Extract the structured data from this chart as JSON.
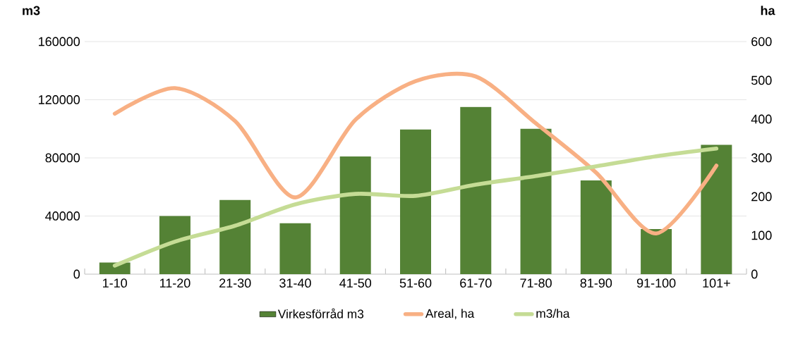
{
  "chart_data": {
    "type": "bar",
    "categories": [
      "1-10",
      "11-20",
      "21-30",
      "31-40",
      "41-50",
      "51-60",
      "61-70",
      "71-80",
      "81-90",
      "91-100",
      "101+"
    ],
    "ylabel": "m3",
    "y2label": "ha",
    "ylim": [
      0,
      160000
    ],
    "yticks": [
      0,
      40000,
      80000,
      120000,
      160000
    ],
    "y2lim": [
      0,
      600
    ],
    "y2ticks": [
      0,
      100,
      200,
      300,
      400,
      500,
      600
    ],
    "grid": "y",
    "legend": "bottom",
    "series": [
      {
        "name": "Virkesförråd m3",
        "color": "#548235",
        "values": [
          8000,
          40000,
          51000,
          35000,
          81000,
          99500,
          115000,
          100000,
          64500,
          31000,
          89000
        ]
      },
      {
        "name": "Areal, ha",
        "type": "line",
        "axis": "y2",
        "color": "#f8b084",
        "values": [
          414,
          480,
          395,
          198,
          398,
          498,
          510,
          389,
          262,
          105,
          280
        ]
      },
      {
        "name": "m3/ha",
        "type": "line",
        "axis": "y2",
        "color": "#c5dc95",
        "values": [
          22,
          84,
          125,
          180,
          207,
          202,
          231,
          253,
          278,
          304,
          324
        ]
      }
    ]
  }
}
